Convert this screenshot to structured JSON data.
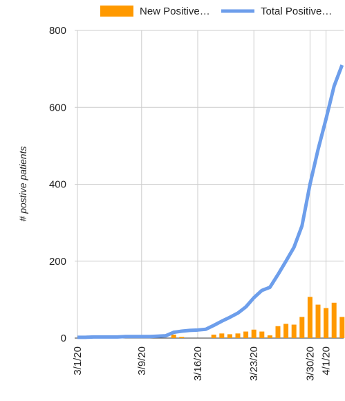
{
  "chart_data": {
    "type": "combo",
    "y_label": "# postive patients",
    "categories": [
      "3/1/20",
      null,
      null,
      null,
      null,
      null,
      null,
      null,
      "3/9/20",
      null,
      null,
      null,
      null,
      null,
      null,
      "3/16/20",
      null,
      null,
      null,
      null,
      null,
      null,
      "3/23/20",
      null,
      null,
      null,
      null,
      null,
      null,
      "3/30/20",
      null,
      "4/1/20",
      null,
      null
    ],
    "series": [
      {
        "name": "New Positive…",
        "type": "bar",
        "color": "#ff9900",
        "values": [
          0,
          0,
          0,
          0,
          0,
          0,
          0,
          0,
          0,
          0,
          0,
          0,
          9,
          3,
          0,
          0,
          0,
          9,
          12,
          10,
          12,
          17,
          22,
          17,
          7,
          31,
          37,
          35,
          55,
          107,
          87,
          78,
          92,
          55
        ]
      },
      {
        "name": "Total Positive…",
        "type": "line",
        "color": "#6d9eeb",
        "values": [
          2,
          2,
          3,
          3,
          3,
          3,
          4,
          4,
          4,
          4,
          5,
          6,
          15,
          18,
          20,
          21,
          23,
          33,
          44,
          54,
          65,
          81,
          105,
          124,
          132,
          165,
          200,
          236,
          292,
          400,
          490,
          570,
          655,
          710
        ]
      }
    ],
    "ylim": [
      0,
      800
    ],
    "yticks": [
      0,
      200,
      400,
      600,
      800
    ],
    "grid": true,
    "legend": "top"
  }
}
